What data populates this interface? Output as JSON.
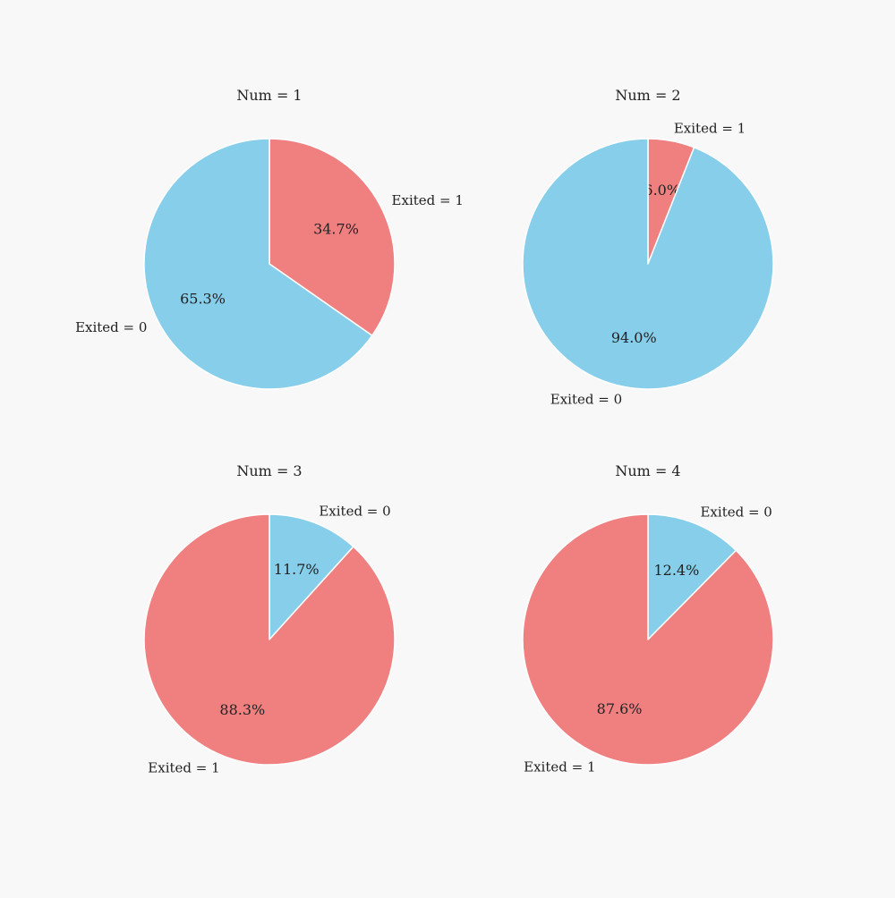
{
  "colors": {
    "Exited = 0": "#87ceeb",
    "Exited = 1": "#f08080",
    "edge": "#ffffff"
  },
  "chart_data": [
    {
      "type": "pie",
      "title": "Num = 1",
      "labels": [
        "Exited = 1",
        "Exited = 0"
      ],
      "values": [
        34.7,
        65.3
      ],
      "autopct": [
        "34.7%",
        "65.3%"
      ],
      "start_angle": 90,
      "direction": "clockwise"
    },
    {
      "type": "pie",
      "title": "Num = 2",
      "labels": [
        "Exited = 1",
        "Exited = 0"
      ],
      "values": [
        6.0,
        94.0
      ],
      "autopct": [
        "6.0%",
        "94.0%"
      ],
      "start_angle": 90,
      "direction": "clockwise"
    },
    {
      "type": "pie",
      "title": "Num = 3",
      "labels": [
        "Exited = 0",
        "Exited = 1"
      ],
      "values": [
        11.7,
        88.3
      ],
      "autopct": [
        "11.7%",
        "88.3%"
      ],
      "start_angle": 90,
      "direction": "clockwise"
    },
    {
      "type": "pie",
      "title": "Num = 4",
      "labels": [
        "Exited = 0",
        "Exited = 1"
      ],
      "values": [
        12.4,
        87.6
      ],
      "autopct": [
        "12.4%",
        "87.6%"
      ],
      "start_angle": 90,
      "direction": "clockwise"
    }
  ]
}
